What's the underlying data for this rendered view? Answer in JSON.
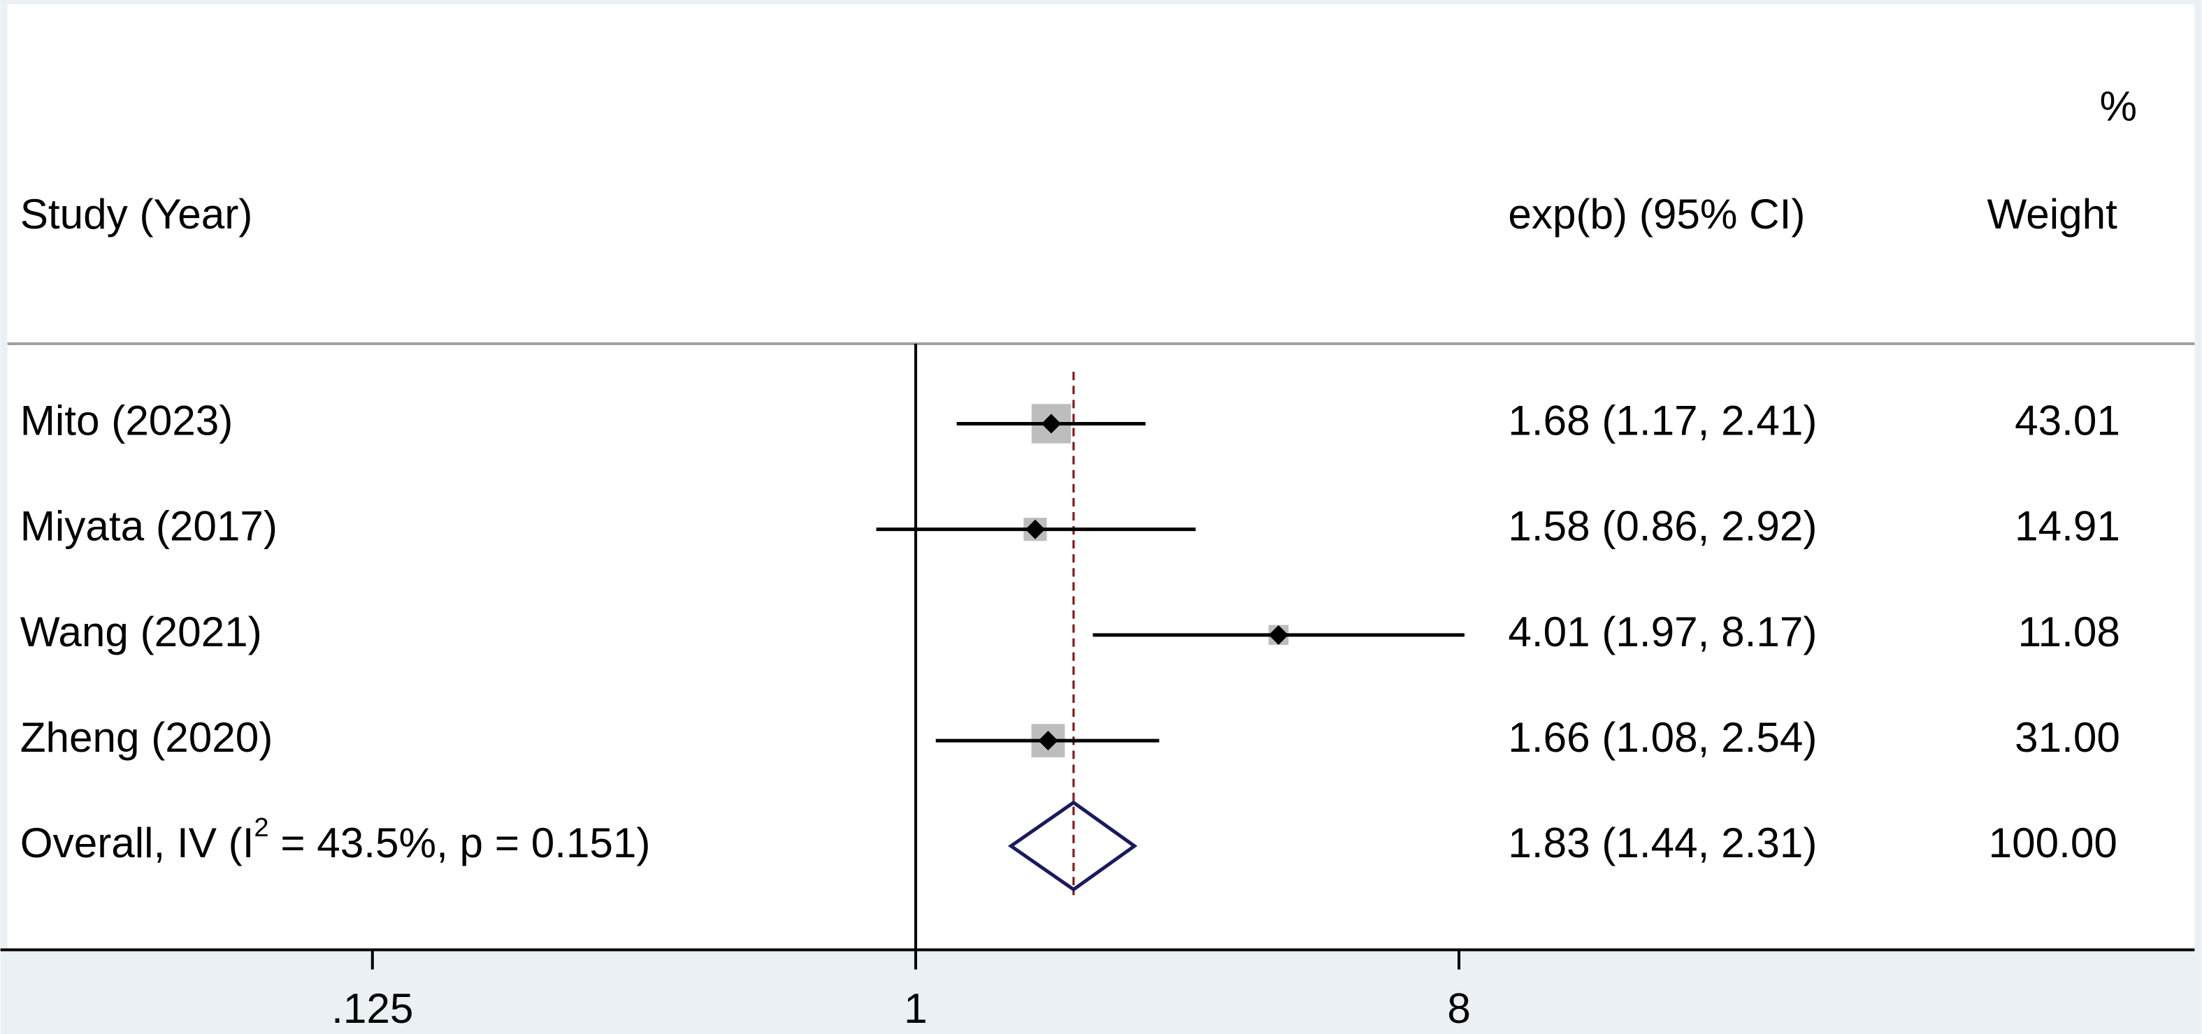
{
  "chart_data": {
    "type": "forest",
    "headers": {
      "weight_unit": "%",
      "study": "Study (Year)",
      "effect": "exp(b) (95% CI)",
      "weight": "Weight"
    },
    "categories": [
      "Mito (2023)",
      "Miyata (2017)",
      "Wang (2021)",
      "Zheng (2020)"
    ],
    "estimates": [
      1.68,
      1.58,
      4.01,
      1.66
    ],
    "ci_low": [
      1.17,
      0.86,
      1.97,
      1.08
    ],
    "ci_high": [
      2.41,
      2.92,
      8.17,
      2.54
    ],
    "estimate_labels": [
      "1.68 (1.17, 2.41)",
      "1.58 (0.86, 2.92)",
      "4.01 (1.97, 8.17)",
      "1.66 (1.08, 2.54)"
    ],
    "weights": [
      43.01,
      14.91,
      11.08,
      31.0
    ],
    "weight_labels": [
      "43.01",
      "14.91",
      "11.08",
      "31.00"
    ],
    "overall": {
      "name_before": "Overall, IV (I",
      "name_sup": "2",
      "name_after": " = 43.5%, p = 0.151)",
      "estimate": 1.83,
      "ci_low": 1.44,
      "ci_high": 2.31,
      "estimate_label": "1.83 (1.44, 2.31)",
      "weight": 100,
      "weight_label": "100.00"
    },
    "reference_line": 1,
    "log_scale": true,
    "xlim": [
      0.03125,
      128
    ],
    "xticks": [
      {
        "value": 0.125,
        "label": ".125"
      },
      1,
      8
    ],
    "box_color": "#bdbdbd",
    "marker_color": "#000000",
    "overall_line_color": "#8b1a1a",
    "diamond_color": "#1a1a5e"
  }
}
